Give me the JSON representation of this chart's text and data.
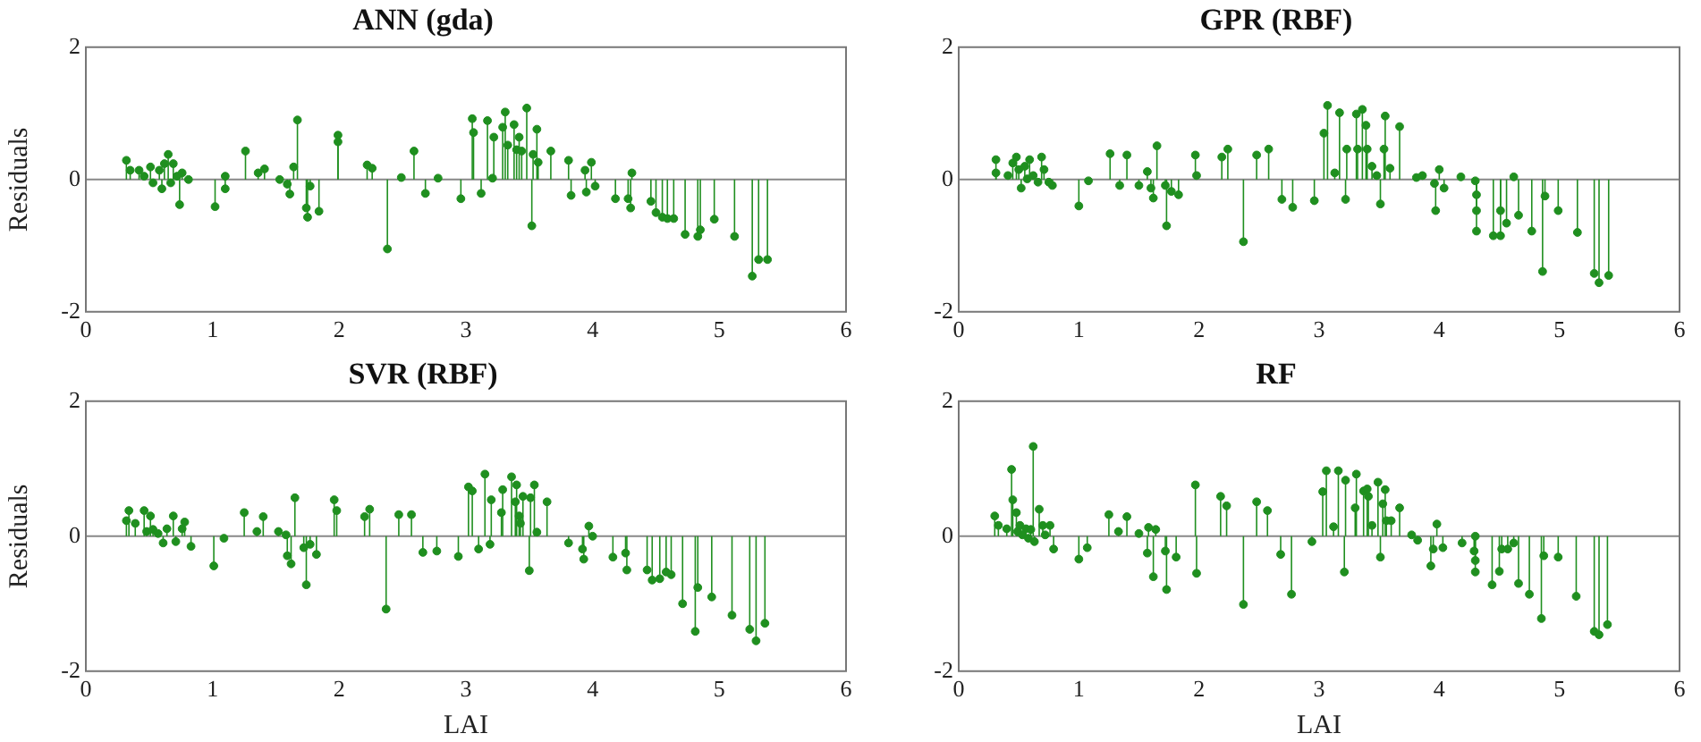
{
  "chart_data": [
    {
      "type": "lollipop",
      "title": "ANN (gda)",
      "ylabel": "Residuals",
      "xlim": [
        0,
        6
      ],
      "xticks": [
        0,
        1,
        2,
        3,
        4,
        5,
        6
      ],
      "ylim": [
        -2,
        2
      ],
      "yticks": [
        -2,
        0,
        2
      ],
      "marker": "circle",
      "series": [
        {
          "color": "#1f8f1f",
          "x": [
            0.32,
            0.35,
            0.42,
            0.46,
            0.51,
            0.53,
            0.58,
            0.6,
            0.62,
            0.65,
            0.67,
            0.69,
            0.72,
            0.74,
            0.76,
            0.81,
            1.02,
            1.1,
            1.1,
            1.26,
            1.36,
            1.41,
            1.53,
            1.59,
            1.61,
            1.64,
            1.67,
            1.74,
            1.75,
            1.77,
            1.84,
            1.99,
            1.99,
            2.22,
            2.26,
            2.38,
            2.49,
            2.59,
            2.68,
            2.78,
            2.96,
            3.05,
            3.06,
            3.12,
            3.17,
            3.21,
            3.22,
            3.29,
            3.31,
            3.33,
            3.38,
            3.4,
            3.42,
            3.44,
            3.48,
            3.52,
            3.53,
            3.56,
            3.57,
            3.67,
            3.81,
            3.83,
            3.94,
            3.95,
            3.99,
            4.02,
            4.18,
            4.28,
            4.3,
            4.31,
            4.46,
            4.5,
            4.55,
            4.59,
            4.64,
            4.73,
            4.83,
            4.85,
            4.96,
            5.12,
            5.26,
            5.31,
            5.38
          ],
          "values": [
            0.29,
            0.14,
            0.14,
            0.05,
            0.19,
            -0.05,
            0.14,
            -0.14,
            0.24,
            0.38,
            -0.05,
            0.24,
            0.05,
            -0.38,
            0.1,
            0.0,
            -0.41,
            0.05,
            -0.14,
            0.43,
            0.1,
            0.16,
            0.0,
            -0.07,
            -0.22,
            0.19,
            0.9,
            -0.43,
            -0.57,
            -0.1,
            -0.48,
            0.67,
            0.57,
            0.22,
            0.17,
            -1.05,
            0.03,
            0.43,
            -0.21,
            0.02,
            -0.29,
            0.92,
            0.71,
            -0.21,
            0.89,
            0.02,
            0.64,
            0.79,
            1.02,
            0.52,
            0.83,
            0.45,
            0.64,
            0.43,
            1.08,
            -0.7,
            0.38,
            0.76,
            0.26,
            0.43,
            0.29,
            -0.24,
            0.14,
            -0.19,
            0.26,
            -0.1,
            -0.29,
            -0.29,
            -0.43,
            0.1,
            -0.33,
            -0.5,
            -0.57,
            -0.59,
            -0.59,
            -0.83,
            -0.86,
            -0.76,
            -0.6,
            -0.86,
            -1.46,
            -1.21,
            -1.21
          ]
        }
      ]
    },
    {
      "type": "lollipop",
      "title": "GPR (RBF)",
      "xlim": [
        0,
        6
      ],
      "xticks": [
        0,
        1,
        2,
        3,
        4,
        5,
        6
      ],
      "ylim": [
        -2,
        2
      ],
      "yticks": [
        -2,
        0,
        2
      ],
      "marker": "circle",
      "series": [
        {
          "color": "#1f8f1f",
          "x": [
            0.31,
            0.31,
            0.41,
            0.45,
            0.48,
            0.5,
            0.52,
            0.55,
            0.57,
            0.59,
            0.62,
            0.66,
            0.69,
            0.71,
            0.75,
            0.78,
            1.0,
            1.08,
            1.26,
            1.34,
            1.4,
            1.5,
            1.57,
            1.6,
            1.62,
            1.65,
            1.72,
            1.73,
            1.77,
            1.83,
            1.97,
            1.98,
            2.19,
            2.24,
            2.37,
            2.48,
            2.58,
            2.69,
            2.78,
            2.96,
            3.04,
            3.07,
            3.13,
            3.17,
            3.22,
            3.23,
            3.31,
            3.32,
            3.36,
            3.39,
            3.4,
            3.44,
            3.48,
            3.51,
            3.54,
            3.55,
            3.59,
            3.67,
            3.81,
            3.86,
            3.96,
            3.97,
            4.0,
            4.04,
            4.18,
            4.3,
            4.31,
            4.31,
            4.31,
            4.45,
            4.51,
            4.51,
            4.56,
            4.62,
            4.66,
            4.77,
            4.86,
            4.88,
            4.99,
            5.15,
            5.29,
            5.33,
            5.41
          ],
          "values": [
            0.3,
            0.1,
            0.06,
            0.25,
            0.34,
            0.15,
            -0.13,
            0.2,
            0.01,
            0.3,
            0.06,
            -0.04,
            0.34,
            0.15,
            -0.04,
            -0.09,
            -0.4,
            -0.02,
            0.39,
            -0.09,
            0.37,
            -0.09,
            0.12,
            -0.13,
            -0.28,
            0.51,
            -0.09,
            -0.7,
            -0.18,
            -0.23,
            0.37,
            0.06,
            0.34,
            0.46,
            -0.94,
            0.37,
            0.46,
            -0.3,
            -0.42,
            -0.32,
            0.7,
            1.12,
            0.1,
            1.01,
            -0.3,
            0.46,
            0.99,
            0.46,
            1.06,
            0.82,
            0.46,
            0.2,
            0.06,
            -0.37,
            0.46,
            0.96,
            0.17,
            0.8,
            0.03,
            0.06,
            -0.06,
            -0.47,
            0.15,
            -0.13,
            0.04,
            -0.02,
            -0.23,
            -0.47,
            -0.78,
            -0.85,
            -0.85,
            -0.47,
            -0.66,
            0.04,
            -0.54,
            -0.78,
            -1.39,
            -0.25,
            -0.47,
            -0.8,
            -1.42,
            -1.56,
            -1.45
          ]
        }
      ]
    },
    {
      "type": "lollipop",
      "title": "SVR (RBF)",
      "xlabel": "LAI",
      "ylabel": "Residuals",
      "xlim": [
        0,
        6
      ],
      "xticks": [
        0,
        1,
        2,
        3,
        4,
        5,
        6
      ],
      "ylim": [
        -2,
        2
      ],
      "yticks": [
        -2,
        0,
        2
      ],
      "marker": "circle",
      "series": [
        {
          "color": "#1f8f1f",
          "x": [
            0.32,
            0.34,
            0.39,
            0.46,
            0.48,
            0.51,
            0.53,
            0.57,
            0.61,
            0.64,
            0.69,
            0.71,
            0.76,
            0.78,
            0.83,
            1.01,
            1.09,
            1.25,
            1.35,
            1.4,
            1.52,
            1.58,
            1.59,
            1.62,
            1.65,
            1.72,
            1.74,
            1.77,
            1.82,
            1.96,
            1.98,
            2.2,
            2.24,
            2.37,
            2.47,
            2.57,
            2.66,
            2.77,
            2.94,
            3.02,
            3.05,
            3.1,
            3.15,
            3.19,
            3.2,
            3.28,
            3.29,
            3.36,
            3.39,
            3.4,
            3.42,
            3.43,
            3.45,
            3.5,
            3.51,
            3.54,
            3.56,
            3.64,
            3.81,
            3.92,
            3.93,
            3.97,
            4.0,
            4.16,
            4.26,
            4.27,
            4.43,
            4.47,
            4.53,
            4.58,
            4.62,
            4.71,
            4.81,
            4.83,
            4.94,
            5.1,
            5.24,
            5.29,
            5.36
          ],
          "values": [
            0.23,
            0.38,
            0.19,
            0.38,
            0.07,
            0.3,
            0.1,
            0.04,
            -0.1,
            0.11,
            0.3,
            -0.08,
            0.11,
            0.21,
            -0.15,
            -0.44,
            -0.03,
            0.35,
            0.07,
            0.29,
            0.07,
            0.02,
            -0.29,
            -0.41,
            0.57,
            -0.17,
            -0.72,
            -0.12,
            -0.27,
            0.54,
            0.38,
            0.29,
            0.4,
            -1.08,
            0.32,
            0.32,
            -0.24,
            -0.22,
            -0.3,
            0.73,
            0.67,
            -0.19,
            0.92,
            -0.12,
            0.54,
            0.35,
            0.69,
            0.88,
            0.51,
            0.76,
            0.3,
            0.19,
            0.59,
            -0.51,
            0.57,
            0.76,
            0.06,
            0.51,
            -0.1,
            -0.19,
            -0.34,
            0.15,
            0.0,
            -0.31,
            -0.25,
            -0.5,
            -0.5,
            -0.65,
            -0.63,
            -0.53,
            -0.57,
            -1.0,
            -1.41,
            -0.76,
            -0.9,
            -1.17,
            -1.38,
            -1.55,
            -1.29
          ]
        }
      ]
    },
    {
      "type": "lollipop",
      "title": "RF",
      "xlabel": "LAI",
      "xlim": [
        0,
        6
      ],
      "xticks": [
        0,
        1,
        2,
        3,
        4,
        5,
        6
      ],
      "ylim": [
        -2,
        2
      ],
      "yticks": [
        -2,
        0,
        2
      ],
      "marker": "circle",
      "series": [
        {
          "color": "#1f8f1f",
          "x": [
            0.3,
            0.33,
            0.4,
            0.44,
            0.45,
            0.48,
            0.49,
            0.51,
            0.53,
            0.56,
            0.58,
            0.6,
            0.62,
            0.63,
            0.67,
            0.7,
            0.72,
            0.76,
            0.79,
            1.0,
            1.07,
            1.25,
            1.33,
            1.4,
            1.5,
            1.57,
            1.58,
            1.62,
            1.64,
            1.72,
            1.73,
            1.81,
            1.97,
            1.98,
            2.18,
            2.23,
            2.37,
            2.48,
            2.57,
            2.68,
            2.77,
            2.94,
            3.03,
            3.06,
            3.12,
            3.16,
            3.21,
            3.22,
            3.3,
            3.31,
            3.37,
            3.4,
            3.41,
            3.44,
            3.49,
            3.51,
            3.53,
            3.55,
            3.56,
            3.6,
            3.67,
            3.77,
            3.82,
            3.93,
            3.95,
            3.98,
            4.03,
            4.19,
            4.29,
            4.3,
            4.3,
            4.3,
            4.44,
            4.5,
            4.52,
            4.57,
            4.62,
            4.66,
            4.75,
            4.85,
            4.87,
            4.99,
            5.14,
            5.29,
            5.33,
            5.4
          ],
          "values": [
            0.3,
            0.16,
            0.11,
            0.99,
            0.54,
            0.35,
            0.07,
            0.16,
            0.02,
            0.11,
            -0.03,
            0.1,
            1.33,
            -0.08,
            0.4,
            0.16,
            0.02,
            0.16,
            -0.19,
            -0.34,
            -0.17,
            0.32,
            0.07,
            0.29,
            0.04,
            -0.25,
            0.13,
            -0.6,
            0.1,
            -0.22,
            -0.79,
            -0.31,
            0.76,
            -0.55,
            0.59,
            0.45,
            -1.01,
            0.51,
            0.38,
            -0.27,
            -0.86,
            -0.08,
            0.66,
            0.97,
            0.14,
            0.97,
            -0.53,
            0.83,
            0.42,
            0.92,
            0.67,
            0.7,
            0.59,
            0.16,
            0.8,
            -0.31,
            0.48,
            0.69,
            0.23,
            0.23,
            0.42,
            0.02,
            -0.06,
            -0.44,
            -0.19,
            0.18,
            -0.17,
            -0.1,
            -0.22,
            -0.36,
            -0.53,
            0.0,
            -0.72,
            -0.52,
            -0.19,
            -0.19,
            -0.1,
            -0.7,
            -0.86,
            -1.22,
            -0.29,
            -0.31,
            -0.89,
            -1.41,
            -1.46,
            -1.31
          ]
        }
      ]
    }
  ]
}
